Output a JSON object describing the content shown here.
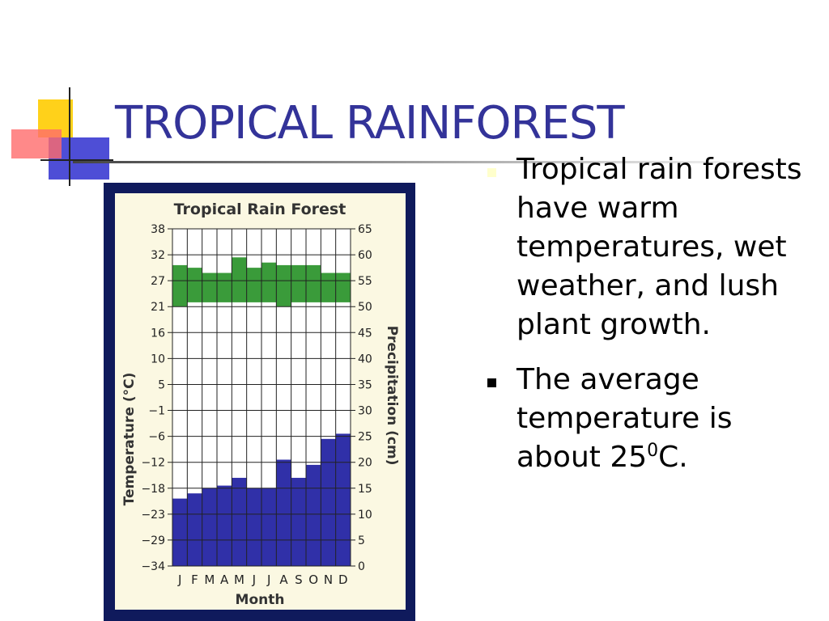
{
  "slide": {
    "title": "TROPICAL RAINFOREST",
    "bullets": [
      {
        "text": "Tropical rain forests have warm temperatures, wet weather, and lush plant growth."
      },
      {
        "text_before": "The average temperature is about 25",
        "sup": "0",
        "text_after": "C."
      }
    ]
  },
  "colors": {
    "title": "#333399",
    "frame": "#0f1a5c",
    "plot_bg": "#fbf8e2",
    "temperature": "#3a9b3a",
    "precipitation": "#3030a8",
    "bullet_first": "#ffffcc",
    "bullet_second": "#000000"
  },
  "chart_data": {
    "type": "bar",
    "title": "Tropical Rain Forest",
    "xlabel": "Month",
    "ylabel_left": "Temperature (°C)",
    "ylabel_right": "Precipitation (cm)",
    "categories": [
      "J",
      "F",
      "M",
      "A",
      "M",
      "J",
      "J",
      "A",
      "S",
      "O",
      "N",
      "D"
    ],
    "left_ticks": [
      "38",
      "32",
      "27",
      "21",
      "16",
      "10",
      "5",
      "−1",
      "−6",
      "−12",
      "−18",
      "−23",
      "−29",
      "−34"
    ],
    "right_ticks": [
      "65",
      "60",
      "55",
      "50",
      "45",
      "40",
      "35",
      "30",
      "25",
      "20",
      "15",
      "10",
      "5",
      "0"
    ],
    "right_ylim": [
      0,
      65
    ],
    "temperature_band": {
      "name": "Temperature",
      "unit": "°C",
      "low": [
        21,
        22,
        22,
        22,
        22,
        22,
        22,
        21,
        22,
        22,
        22,
        22
      ],
      "high": [
        30,
        29.5,
        28.5,
        28.5,
        31.5,
        29.5,
        30.5,
        30,
        30,
        30,
        28.5,
        28.5
      ]
    },
    "precipitation": {
      "name": "Precipitation",
      "unit": "cm",
      "values": [
        13,
        14,
        15,
        15.5,
        17,
        15,
        15,
        20.5,
        17,
        19.5,
        24.5,
        25.5
      ]
    }
  }
}
